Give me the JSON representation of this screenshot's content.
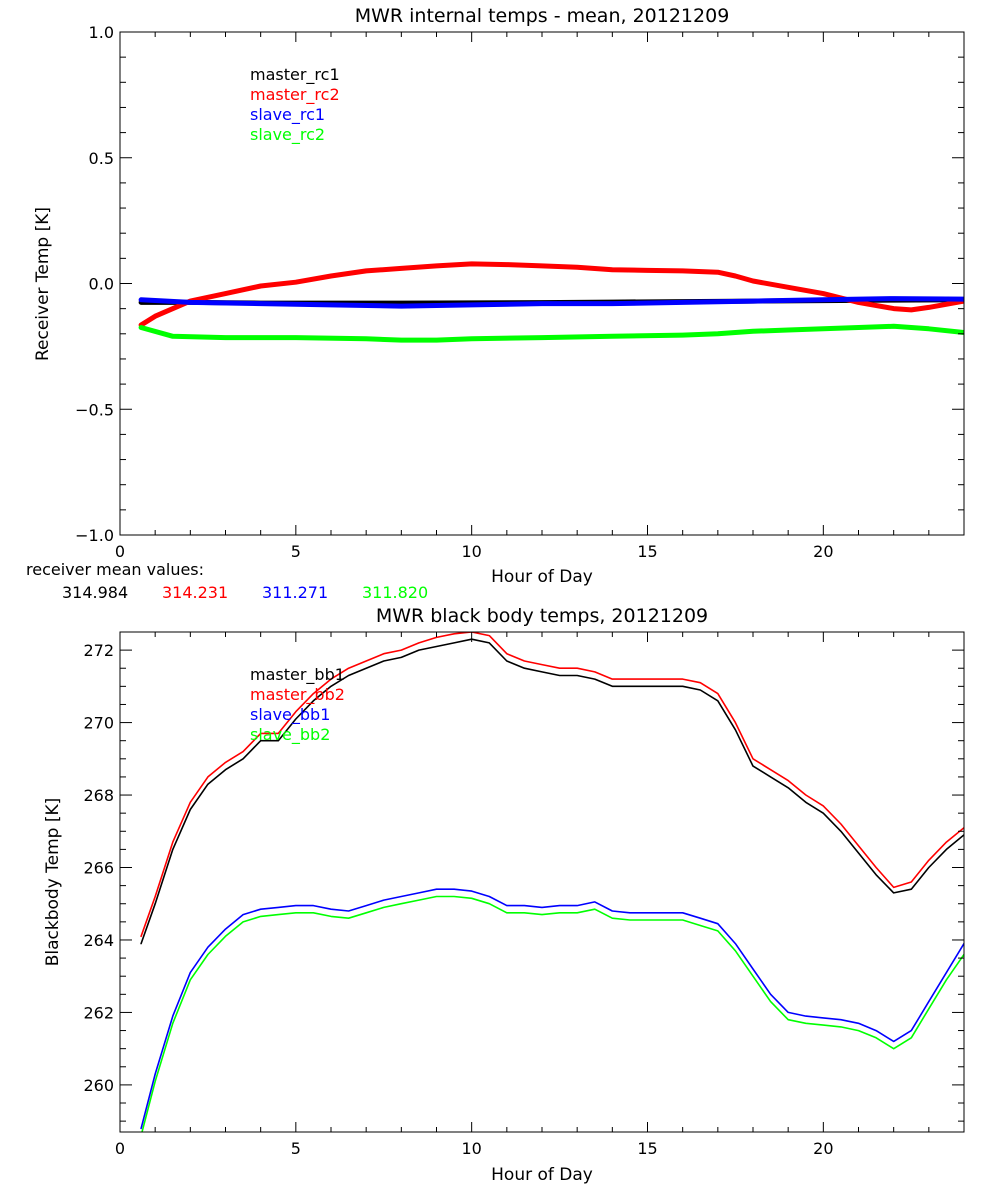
{
  "chart_data": [
    {
      "type": "line",
      "title": "MWR internal temps - mean, 20121209",
      "xlabel": "Hour of Day",
      "ylabel": "Receiver Temp [K]",
      "xlim": [
        0,
        24
      ],
      "ylim": [
        -1.0,
        1.0
      ],
      "xticks": [
        0,
        5,
        10,
        15,
        20
      ],
      "yticks": [
        -1.0,
        -0.5,
        0.0,
        0.5,
        1.0
      ],
      "x_tick_labels": [
        "0",
        "5",
        "10",
        "15",
        "20"
      ],
      "y_tick_labels": [
        "−1.0",
        "−0.5",
        "0.0",
        "0.5",
        "1.0"
      ],
      "grid": false,
      "legend_position": "top-left",
      "series": [
        {
          "name": "master_rc1",
          "color": "#000000",
          "x": [
            0.6,
            2,
            4,
            6,
            8,
            10,
            12,
            14,
            16,
            18,
            20,
            22,
            24
          ],
          "y": [
            -0.075,
            -0.075,
            -0.078,
            -0.078,
            -0.078,
            -0.077,
            -0.076,
            -0.074,
            -0.072,
            -0.07,
            -0.068,
            -0.066,
            -0.065
          ]
        },
        {
          "name": "master_rc2",
          "color": "#ff0000",
          "x": [
            0.6,
            1,
            2,
            3,
            4,
            5,
            6,
            7,
            8,
            9,
            10,
            11,
            12,
            13,
            14,
            15,
            16,
            17,
            17.5,
            18,
            19,
            20,
            21,
            22,
            22.5,
            23,
            24
          ],
          "y": [
            -0.165,
            -0.13,
            -0.07,
            -0.04,
            -0.01,
            0.005,
            0.03,
            0.05,
            0.06,
            0.07,
            0.078,
            0.075,
            0.07,
            0.065,
            0.055,
            0.052,
            0.05,
            0.045,
            0.03,
            0.01,
            -0.015,
            -0.04,
            -0.075,
            -0.1,
            -0.105,
            -0.095,
            -0.07
          ]
        },
        {
          "name": "slave_rc1",
          "color": "#0000ff",
          "x": [
            0.6,
            2,
            4,
            6,
            8,
            10,
            12,
            14,
            16,
            18,
            20,
            22,
            24
          ],
          "y": [
            -0.065,
            -0.075,
            -0.08,
            -0.085,
            -0.09,
            -0.085,
            -0.08,
            -0.08,
            -0.075,
            -0.07,
            -0.065,
            -0.06,
            -0.062
          ]
        },
        {
          "name": "slave_rc2",
          "color": "#00ff00",
          "x": [
            0.6,
            1.5,
            3,
            5,
            7,
            8,
            9,
            10,
            12,
            14,
            16,
            17,
            18,
            19,
            20,
            21,
            22,
            23,
            24
          ],
          "y": [
            -0.175,
            -0.21,
            -0.215,
            -0.215,
            -0.22,
            -0.225,
            -0.225,
            -0.22,
            -0.215,
            -0.21,
            -0.205,
            -0.2,
            -0.19,
            -0.185,
            -0.18,
            -0.175,
            -0.17,
            -0.18,
            -0.195
          ]
        }
      ],
      "mean_caption": "receiver mean values:",
      "mean_values": [
        {
          "text": "314.984",
          "color": "#000000"
        },
        {
          "text": "314.231",
          "color": "#ff0000"
        },
        {
          "text": "311.271",
          "color": "#0000ff"
        },
        {
          "text": "311.820",
          "color": "#00ff00"
        }
      ]
    },
    {
      "type": "line",
      "title": "MWR black body temps, 20121209",
      "xlabel": "Hour of Day",
      "ylabel": "Blackbody Temp [K]",
      "xlim": [
        0,
        24
      ],
      "ylim": [
        258.7,
        272.5
      ],
      "xticks": [
        0,
        5,
        10,
        15,
        20
      ],
      "yticks": [
        260,
        262,
        264,
        266,
        268,
        270,
        272
      ],
      "x_tick_labels": [
        "0",
        "5",
        "10",
        "15",
        "20"
      ],
      "y_tick_labels": [
        "260",
        "262",
        "264",
        "266",
        "268",
        "270",
        "272"
      ],
      "grid": false,
      "legend_position": "top-left",
      "series": [
        {
          "name": "master_bb1",
          "color": "#000000",
          "x": [
            0.6,
            1,
            1.5,
            2,
            2.5,
            3,
            3.5,
            4,
            4.5,
            5,
            5.5,
            6,
            6.5,
            7,
            7.5,
            8,
            8.5,
            9,
            9.5,
            10,
            10.5,
            11,
            11.5,
            12,
            12.5,
            13,
            13.5,
            14,
            14.5,
            15,
            15.5,
            16,
            16.5,
            17,
            17.5,
            18,
            18.5,
            19,
            19.5,
            20,
            20.5,
            21,
            21.5,
            22,
            22.5,
            23,
            23.5,
            24
          ],
          "y": [
            263.9,
            265.0,
            266.5,
            267.6,
            268.3,
            268.7,
            269.0,
            269.5,
            269.5,
            270.1,
            270.6,
            271.0,
            271.3,
            271.5,
            271.7,
            271.8,
            272.0,
            272.1,
            272.2,
            272.3,
            272.2,
            271.7,
            271.5,
            271.4,
            271.3,
            271.3,
            271.2,
            271.0,
            271.0,
            271.0,
            271.0,
            271.0,
            270.9,
            270.6,
            269.8,
            268.8,
            268.5,
            268.2,
            267.8,
            267.5,
            267.0,
            266.4,
            265.8,
            265.3,
            265.4,
            266.0,
            266.5,
            266.9
          ]
        },
        {
          "name": "master_bb2",
          "color": "#ff0000",
          "x": [
            0.6,
            1,
            1.5,
            2,
            2.5,
            3,
            3.5,
            4,
            4.5,
            5,
            5.5,
            6,
            6.5,
            7,
            7.5,
            8,
            8.5,
            9,
            9.5,
            10,
            10.5,
            11,
            11.5,
            12,
            12.5,
            13,
            13.5,
            14,
            14.5,
            15,
            15.5,
            16,
            16.5,
            17,
            17.5,
            18,
            18.5,
            19,
            19.5,
            20,
            20.5,
            21,
            21.5,
            22,
            22.5,
            23,
            23.5,
            24
          ],
          "y": [
            264.1,
            265.2,
            266.7,
            267.8,
            268.5,
            268.9,
            269.2,
            269.7,
            269.7,
            270.3,
            270.8,
            271.2,
            271.5,
            271.7,
            271.9,
            272.0,
            272.2,
            272.35,
            272.45,
            272.5,
            272.4,
            271.9,
            271.7,
            271.6,
            271.5,
            271.5,
            271.4,
            271.2,
            271.2,
            271.2,
            271.2,
            271.2,
            271.1,
            270.8,
            270.0,
            269.0,
            268.7,
            268.4,
            268.0,
            267.7,
            267.2,
            266.6,
            266.0,
            265.45,
            265.6,
            266.2,
            266.7,
            267.1
          ]
        },
        {
          "name": "slave_bb1",
          "color": "#0000ff",
          "x": [
            0.6,
            1,
            1.5,
            2,
            2.5,
            3,
            3.5,
            4,
            4.5,
            5,
            5.5,
            6,
            6.5,
            7,
            7.5,
            8,
            8.5,
            9,
            9.5,
            10,
            10.5,
            11,
            11.5,
            12,
            12.5,
            13,
            13.5,
            14,
            14.5,
            15,
            15.5,
            16,
            16.5,
            17,
            17.5,
            18,
            18.5,
            19,
            19.5,
            20,
            20.5,
            21,
            21.5,
            22,
            22.5,
            23,
            23.5,
            24
          ],
          "y": [
            258.8,
            260.3,
            261.9,
            263.1,
            263.8,
            264.3,
            264.7,
            264.85,
            264.9,
            264.95,
            264.95,
            264.85,
            264.8,
            264.95,
            265.1,
            265.2,
            265.3,
            265.4,
            265.4,
            265.35,
            265.2,
            264.95,
            264.95,
            264.9,
            264.95,
            264.95,
            265.05,
            264.8,
            264.75,
            264.75,
            264.75,
            264.75,
            264.6,
            264.45,
            263.9,
            263.2,
            262.5,
            262.0,
            261.9,
            261.85,
            261.8,
            261.7,
            261.5,
            261.2,
            261.5,
            262.3,
            263.1,
            263.9
          ]
        },
        {
          "name": "slave_bb2",
          "color": "#00ff00",
          "x": [
            0.6,
            1,
            1.5,
            2,
            2.5,
            3,
            3.5,
            4,
            4.5,
            5,
            5.5,
            6,
            6.5,
            7,
            7.5,
            8,
            8.5,
            9,
            9.5,
            10,
            10.5,
            11,
            11.5,
            12,
            12.5,
            13,
            13.5,
            14,
            14.5,
            15,
            15.5,
            16,
            16.5,
            17,
            17.5,
            18,
            18.5,
            19,
            19.5,
            20,
            20.5,
            21,
            21.5,
            22,
            22.5,
            23,
            23.5,
            24
          ],
          "y": [
            258.6,
            260.1,
            261.7,
            262.9,
            263.6,
            264.1,
            264.5,
            264.65,
            264.7,
            264.75,
            264.75,
            264.65,
            264.6,
            264.75,
            264.9,
            265.0,
            265.1,
            265.2,
            265.2,
            265.15,
            265.0,
            264.75,
            264.75,
            264.7,
            264.75,
            264.75,
            264.85,
            264.6,
            264.55,
            264.55,
            264.55,
            264.55,
            264.4,
            264.25,
            263.7,
            263.0,
            262.3,
            261.8,
            261.7,
            261.65,
            261.6,
            261.5,
            261.3,
            261.0,
            261.3,
            262.1,
            262.9,
            263.6
          ]
        }
      ]
    }
  ]
}
